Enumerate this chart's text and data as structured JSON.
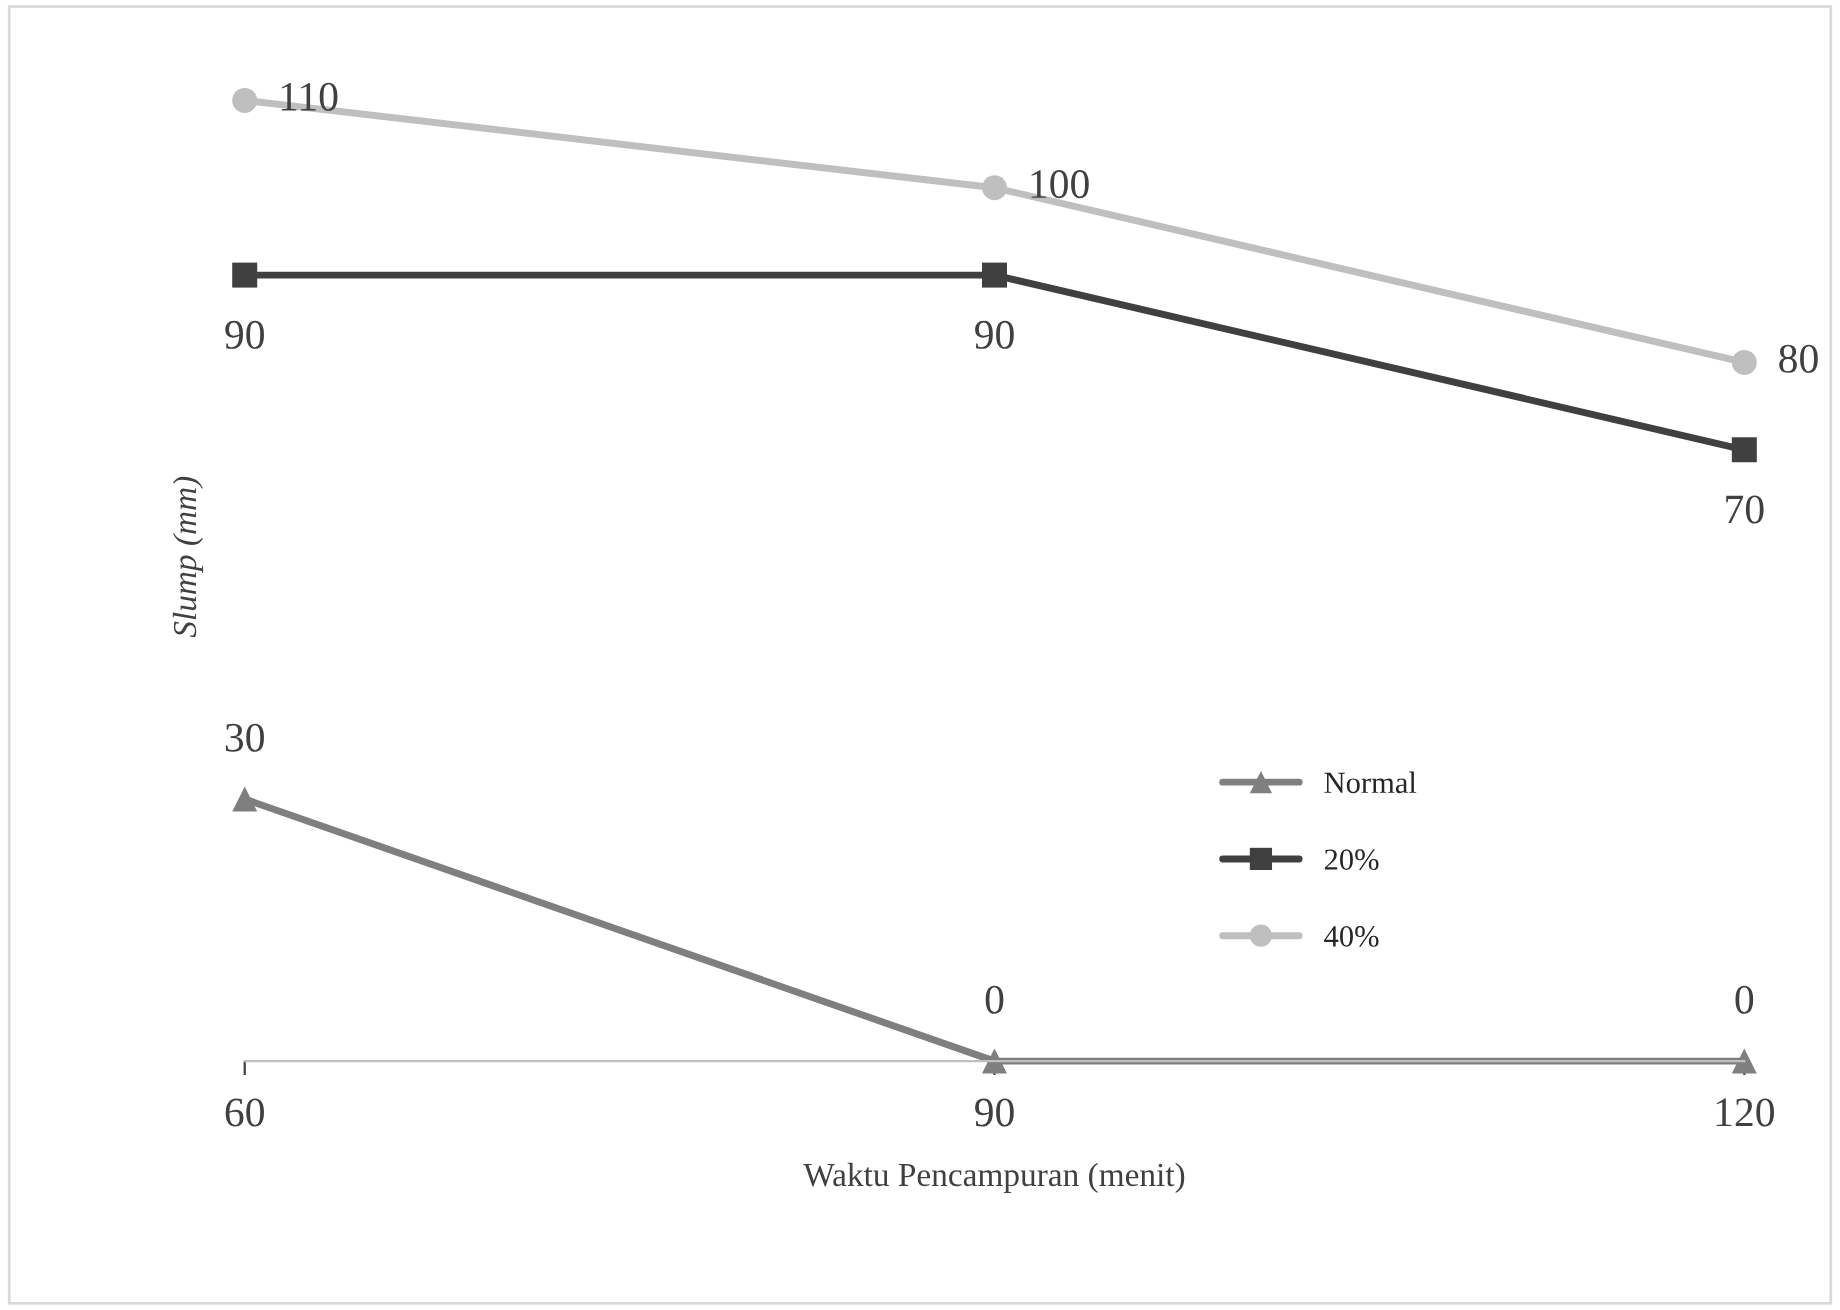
{
  "chart_data": {
    "type": "line",
    "xlabel": "Waktu Pencampuran (menit)",
    "ylabel": "Slump (mm)",
    "x": [
      60,
      90,
      120
    ],
    "xlim": [
      60,
      120
    ],
    "xticks": [
      60,
      90,
      120
    ],
    "series": [
      {
        "name": "Normal",
        "color": "#7f7f7f",
        "values": [
          30,
          0,
          0
        ],
        "marker": "triangle"
      },
      {
        "name": "20%",
        "color": "#404040",
        "values": [
          90,
          90,
          70
        ],
        "marker": "square"
      },
      {
        "name": "40%",
        "color": "#bfbfbf",
        "values": [
          110,
          100,
          80
        ],
        "marker": "circle"
      }
    ],
    "tick_labels": "x",
    "data_labels": true,
    "grid": false,
    "legend": "bottom right",
    "line_style": "solid"
  }
}
